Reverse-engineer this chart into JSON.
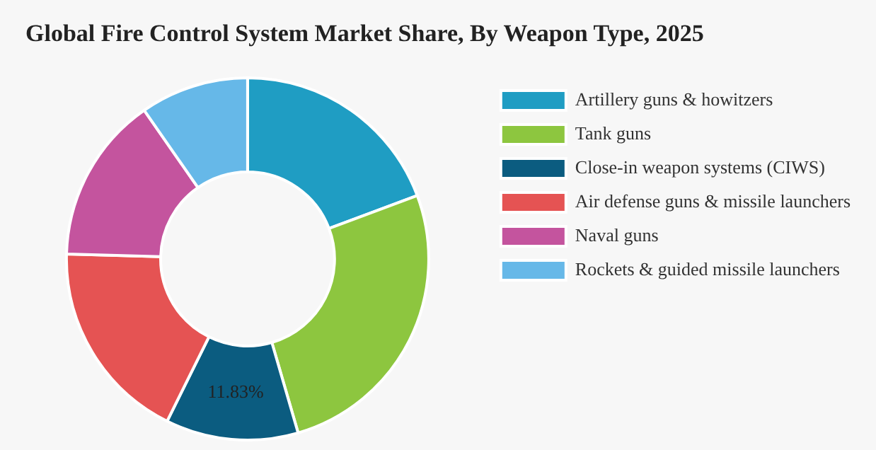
{
  "chart_data": {
    "type": "donut",
    "title": "Global Fire Control System Market Share, By Weapon Type, 2025",
    "categories": [
      "Artillery guns & howitzers",
      "Tank guns",
      "Close-in weapon systems (CIWS)",
      "Air defense guns & missile launchers",
      "Naval guns",
      "Rockets & guided missile launchers"
    ],
    "values": [
      19.3,
      26.2,
      11.83,
      18.1,
      14.9,
      9.67
    ],
    "colors": [
      "#1f9dc3",
      "#8dc63f",
      "#0b5c80",
      "#e55353",
      "#c4549e",
      "#66b8e8"
    ],
    "value_labels": [
      null,
      null,
      "11.83%",
      null,
      null,
      null
    ],
    "legend": "right"
  }
}
